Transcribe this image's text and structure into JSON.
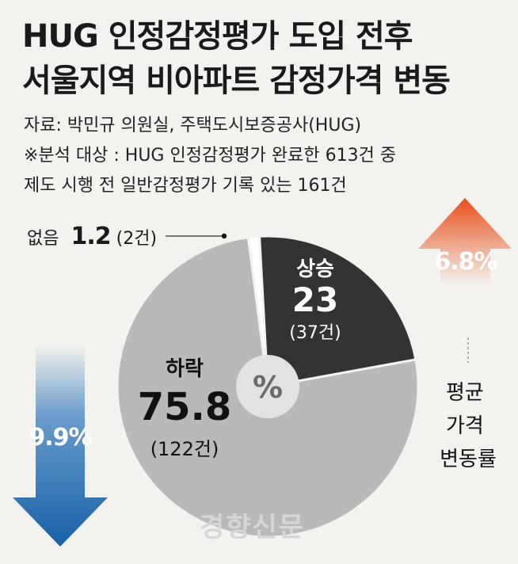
{
  "title_line1": "HUG 인정감정평가 도입 전후",
  "title_line2": "서울지역 비아파트 감정가격 변동",
  "source_line1": "자료: 박민규 의원실, 주택도시보증공사(HUG)",
  "source_line2": "※분석 대상 : HUG 인정감정평가 완료한 613건 중",
  "source_line3": "제도 시행 전 일반감정평가 기록 있는 161건",
  "center_label": "%",
  "side_label_lines": [
    "평균",
    "가격",
    "변동률"
  ],
  "watermark": "경향신문",
  "colors": {
    "rise": "#333333",
    "fall": "#b9b9b9",
    "none": "#ffffff",
    "up_arrow": "#e8501c",
    "down_arrow": "#1860a8"
  },
  "chart_data": {
    "type": "pie",
    "unit": "%",
    "slices": [
      {
        "label": "없음",
        "value": 1.2,
        "count": "(2건)"
      },
      {
        "label": "상승",
        "value": 23,
        "count": "(37건)"
      },
      {
        "label": "하락",
        "value": 75.8,
        "count": "(122건)"
      }
    ],
    "average_change": {
      "up": "6.8%",
      "down": "9.9%"
    }
  }
}
